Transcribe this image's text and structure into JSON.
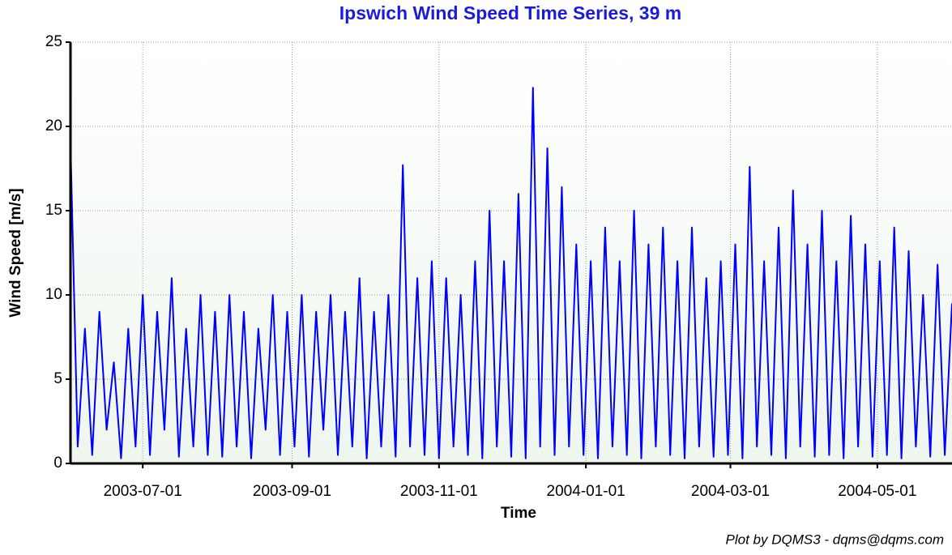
{
  "chart_data": {
    "type": "line",
    "title": "Ipswich Wind Speed Time Series, 39 m",
    "xlabel": "Time",
    "ylabel": "Wind Speed [m/s]",
    "footnote": "Plot by DQMS3 - dqms@dqms.com",
    "x": [
      "2003-06-01",
      "2003-06-04",
      "2003-06-07",
      "2003-06-10",
      "2003-06-13",
      "2003-06-16",
      "2003-06-19",
      "2003-06-22",
      "2003-06-25",
      "2003-06-28",
      "2003-07-01",
      "2003-07-04",
      "2003-07-07",
      "2003-07-10",
      "2003-07-13",
      "2003-07-16",
      "2003-07-19",
      "2003-07-22",
      "2003-07-25",
      "2003-07-28",
      "2003-07-31",
      "2003-08-03",
      "2003-08-06",
      "2003-08-09",
      "2003-08-12",
      "2003-08-15",
      "2003-08-18",
      "2003-08-21",
      "2003-08-24",
      "2003-08-27",
      "2003-08-30",
      "2003-09-02",
      "2003-09-05",
      "2003-09-08",
      "2003-09-11",
      "2003-09-14",
      "2003-09-17",
      "2003-09-20",
      "2003-09-23",
      "2003-09-26",
      "2003-09-29",
      "2003-10-02",
      "2003-10-05",
      "2003-10-08",
      "2003-10-11",
      "2003-10-14",
      "2003-10-17",
      "2003-10-20",
      "2003-10-23",
      "2003-10-26",
      "2003-10-29",
      "2003-11-01",
      "2003-11-04",
      "2003-11-07",
      "2003-11-10",
      "2003-11-13",
      "2003-11-16",
      "2003-11-19",
      "2003-11-22",
      "2003-11-25",
      "2003-11-28",
      "2003-12-01",
      "2003-12-04",
      "2003-12-07",
      "2003-12-10",
      "2003-12-13",
      "2003-12-16",
      "2003-12-19",
      "2003-12-22",
      "2003-12-25",
      "2003-12-28",
      "2003-12-31",
      "2004-01-03",
      "2004-01-06",
      "2004-01-09",
      "2004-01-12",
      "2004-01-15",
      "2004-01-18",
      "2004-01-21",
      "2004-01-24",
      "2004-01-27",
      "2004-01-30",
      "2004-02-02",
      "2004-02-05",
      "2004-02-08",
      "2004-02-11",
      "2004-02-14",
      "2004-02-17",
      "2004-02-20",
      "2004-02-23",
      "2004-02-26",
      "2004-02-29",
      "2004-03-03",
      "2004-03-06",
      "2004-03-09",
      "2004-03-12",
      "2004-03-15",
      "2004-03-18",
      "2004-03-21",
      "2004-03-24",
      "2004-03-27",
      "2004-03-30",
      "2004-04-02",
      "2004-04-05",
      "2004-04-08",
      "2004-04-11",
      "2004-04-14",
      "2004-04-17",
      "2004-04-20",
      "2004-04-23",
      "2004-04-26",
      "2004-04-29",
      "2004-05-02",
      "2004-05-05",
      "2004-05-08",
      "2004-05-11",
      "2004-05-14",
      "2004-05-17",
      "2004-05-20",
      "2004-05-23",
      "2004-05-26",
      "2004-05-29",
      "2004-06-01"
    ],
    "series": [
      {
        "color": "#0000ff",
        "values": [
          19,
          1,
          8,
          0.5,
          9,
          2,
          6,
          0.3,
          8,
          1,
          10,
          0.5,
          9,
          2,
          11,
          0.4,
          8,
          1,
          10,
          0.5,
          9,
          0.4,
          10,
          1,
          9,
          0.3,
          8,
          2,
          10,
          0.5,
          9,
          1,
          10,
          0.4,
          9,
          2,
          10,
          0.5,
          9,
          1,
          11,
          0.3,
          9,
          1,
          10,
          0.4,
          17.7,
          1,
          11,
          0.5,
          12,
          0.3,
          11,
          1,
          10,
          0.5,
          12,
          0.3,
          15,
          1,
          12,
          0.4,
          16,
          0.3,
          22.3,
          1,
          18.7,
          0.5,
          16.4,
          1,
          13,
          0.5,
          12,
          0.3,
          14,
          1,
          12,
          0.5,
          15,
          0.3,
          13,
          1,
          14,
          0.5,
          12,
          0.3,
          14,
          1,
          11,
          0.4,
          12,
          0.5,
          13,
          0.3,
          17.6,
          1,
          12,
          0.5,
          14,
          0.3,
          16.2,
          1,
          13,
          0.4,
          15,
          0.5,
          12,
          0.3,
          14.7,
          1,
          13,
          0.4,
          12,
          0.5,
          14,
          0.3,
          12.6,
          1,
          10,
          0.4,
          11.8,
          0.5,
          9.5
        ]
      }
    ],
    "xlim": [
      "2003-06-01",
      "2004-06-01"
    ],
    "xticks": [
      "2003-07-01",
      "2003-09-01",
      "2003-11-01",
      "2004-01-01",
      "2004-03-01",
      "2004-05-01"
    ],
    "ylim": [
      0,
      25
    ],
    "yticks": [
      0,
      5,
      10,
      15,
      20,
      25
    ],
    "grid": true
  }
}
